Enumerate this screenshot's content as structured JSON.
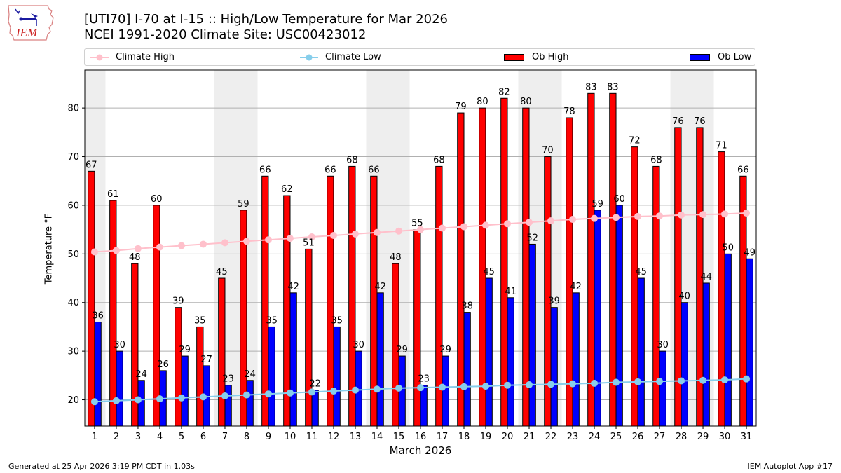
{
  "header": {
    "title_line1": "[UTI70] I-70 at I-15  :: High/Low Temperature for Mar 2026",
    "title_line2": "NCEI 1991-2020 Climate Site: USC00423012",
    "logo_text": "IEM"
  },
  "legend": {
    "items": [
      {
        "label": "Climate High",
        "kind": "line",
        "color": "#ffc0cb"
      },
      {
        "label": "Climate Low",
        "kind": "line",
        "color": "#87ceeb"
      },
      {
        "label": "Ob High",
        "kind": "bar",
        "color": "#ff0000"
      },
      {
        "label": "Ob Low",
        "kind": "bar",
        "color": "#0000ff"
      }
    ]
  },
  "footer": {
    "left": "Generated at 25 Apr 2026 3:19 PM CDT in 1.03s",
    "right": "IEM Autoplot App #17"
  },
  "chart_data": {
    "type": "bar",
    "title": "[UTI70] I-70 at I-15  :: High/Low Temperature for Mar 2026",
    "subtitle": "NCEI 1991-2020 Climate Site: USC00423012",
    "xlabel": "March 2026",
    "ylabel": "Temperature °F",
    "ylim": [
      14.6,
      87.8
    ],
    "xlim": [
      0.55,
      31.45
    ],
    "yticks": [
      20,
      30,
      40,
      50,
      60,
      70,
      80
    ],
    "grid": "y",
    "legend_position": "top",
    "categories": [
      1,
      2,
      3,
      4,
      5,
      6,
      7,
      8,
      9,
      10,
      11,
      12,
      13,
      14,
      15,
      16,
      17,
      18,
      19,
      20,
      21,
      22,
      23,
      24,
      25,
      26,
      27,
      28,
      29,
      30,
      31
    ],
    "weekend_shading": [
      [
        1,
        1
      ],
      [
        7,
        8
      ],
      [
        14,
        15
      ],
      [
        21,
        22
      ],
      [
        28,
        29
      ]
    ],
    "series": [
      {
        "name": "Ob High",
        "type": "bar",
        "color": "#ff0000",
        "values": [
          67,
          61,
          48,
          60,
          39,
          35,
          45,
          59,
          66,
          62,
          51,
          66,
          68,
          66,
          48,
          55,
          68,
          79,
          80,
          82,
          80,
          70,
          78,
          83,
          83,
          72,
          68,
          76,
          76,
          71,
          66
        ]
      },
      {
        "name": "Ob Low",
        "type": "bar",
        "color": "#0000ff",
        "values": [
          36,
          30,
          24,
          26,
          29,
          27,
          23,
          24,
          35,
          42,
          22,
          35,
          30,
          42,
          29,
          23,
          29,
          38,
          45,
          41,
          52,
          39,
          42,
          59,
          60,
          45,
          30,
          40,
          44,
          50,
          49
        ]
      },
      {
        "name": "Climate High",
        "type": "line",
        "color": "#ffc0cb",
        "values": [
          50.4,
          50.7,
          51.1,
          51.4,
          51.7,
          52.0,
          52.3,
          52.6,
          52.9,
          53.2,
          53.5,
          53.8,
          54.1,
          54.4,
          54.7,
          55.0,
          55.3,
          55.6,
          55.9,
          56.2,
          56.5,
          56.8,
          57.1,
          57.3,
          57.5,
          57.7,
          57.8,
          58.0,
          58.1,
          58.2,
          58.4
        ]
      },
      {
        "name": "Climate Low",
        "type": "line",
        "color": "#87ceeb",
        "values": [
          19.6,
          19.8,
          20.0,
          20.2,
          20.4,
          20.6,
          20.8,
          21.0,
          21.2,
          21.4,
          21.6,
          21.8,
          22.0,
          22.2,
          22.4,
          22.5,
          22.6,
          22.7,
          22.8,
          23.0,
          23.1,
          23.2,
          23.3,
          23.4,
          23.6,
          23.7,
          23.8,
          23.9,
          24.0,
          24.1,
          24.3
        ]
      }
    ]
  }
}
